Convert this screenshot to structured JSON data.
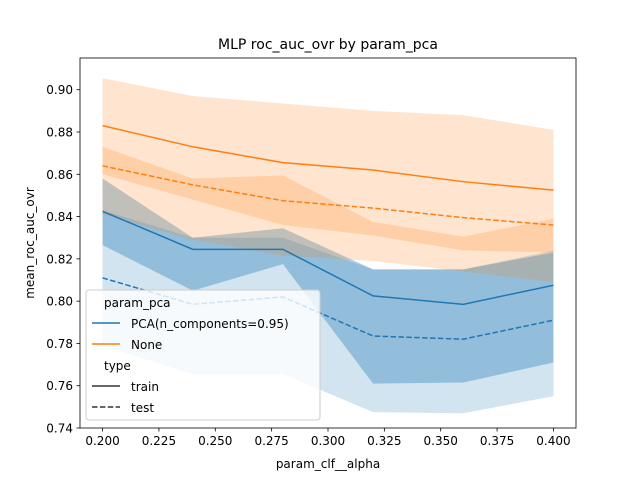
{
  "chart_data": {
    "type": "line",
    "title": "MLP roc_auc_ovr by param_pca",
    "xlabel": "param_clf__alpha",
    "ylabel": "mean_roc_auc_ovr",
    "xlim": [
      0.19,
      0.41
    ],
    "ylim": [
      0.74,
      0.915
    ],
    "x_ticks": [
      "0.200",
      "0.225",
      "0.250",
      "0.275",
      "0.300",
      "0.325",
      "0.350",
      "0.375",
      "0.400"
    ],
    "y_ticks": [
      "0.74",
      "0.76",
      "0.78",
      "0.80",
      "0.82",
      "0.84",
      "0.86",
      "0.88",
      "0.90"
    ],
    "x": [
      0.2,
      0.24,
      0.28,
      0.32,
      0.36,
      0.4
    ],
    "grid": false,
    "legend": {
      "placement": "lower-left",
      "hue_title": "param_pca",
      "hue_entries": [
        {
          "label": "PCA(n_components=0.95)",
          "color": "#1f77b4"
        },
        {
          "label": "None",
          "color": "#ff7f0e"
        }
      ],
      "style_title": "type",
      "style_entries": [
        {
          "label": "train",
          "dash": "solid"
        },
        {
          "label": "test",
          "dash": "dashed"
        }
      ]
    },
    "series": [
      {
        "pca": "PCA(n_components=0.95)",
        "type": "train",
        "color": "#1f77b4",
        "dashed": false,
        "band_alpha": 0.35,
        "values": [
          0.8425,
          0.8245,
          0.8245,
          0.8025,
          0.7985,
          0.8075
        ],
        "lower": [
          0.8265,
          0.805,
          0.8175,
          0.761,
          0.7615,
          0.771
        ],
        "upper": [
          0.858,
          0.83,
          0.8345,
          0.815,
          0.815,
          0.823
        ]
      },
      {
        "pca": "PCA(n_components=0.95)",
        "type": "test",
        "color": "#1f77b4",
        "dashed": true,
        "band_alpha": 0.2,
        "values": [
          0.811,
          0.7985,
          0.802,
          0.7835,
          0.782,
          0.791
        ],
        "lower": [
          0.779,
          0.7655,
          0.7655,
          0.7475,
          0.747,
          0.755
        ],
        "upper": [
          0.843,
          0.83,
          0.83,
          0.815,
          0.815,
          0.824
        ]
      },
      {
        "pca": "None",
        "type": "train",
        "color": "#ff7f0e",
        "dashed": false,
        "band_alpha": 0.2,
        "values": [
          0.883,
          0.873,
          0.8655,
          0.862,
          0.8565,
          0.8525
        ],
        "lower": [
          0.86,
          0.848,
          0.836,
          0.831,
          0.824,
          0.823
        ],
        "upper": [
          0.9055,
          0.897,
          0.8935,
          0.89,
          0.888,
          0.881
        ]
      },
      {
        "pca": "None",
        "type": "test",
        "color": "#ff7f0e",
        "dashed": true,
        "band_alpha": 0.2,
        "values": [
          0.864,
          0.855,
          0.8475,
          0.844,
          0.8395,
          0.836
        ],
        "lower": [
          0.841,
          0.829,
          0.8215,
          0.819,
          0.814,
          0.809
        ],
        "upper": [
          0.873,
          0.858,
          0.8595,
          0.8375,
          0.8305,
          0.839
        ]
      }
    ]
  }
}
